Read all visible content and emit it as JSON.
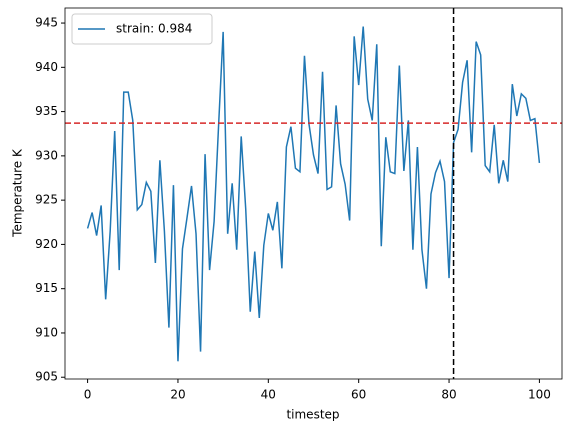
{
  "chart_data": {
    "type": "line",
    "xlabel": "timestep",
    "ylabel": "Temperature K",
    "x": [
      0,
      1,
      2,
      3,
      4,
      5,
      6,
      7,
      8,
      9,
      10,
      11,
      12,
      13,
      14,
      15,
      16,
      17,
      18,
      19,
      20,
      21,
      22,
      23,
      24,
      25,
      26,
      27,
      28,
      29,
      30,
      31,
      32,
      33,
      34,
      35,
      36,
      37,
      38,
      39,
      40,
      41,
      42,
      43,
      44,
      45,
      46,
      47,
      48,
      49,
      50,
      51,
      52,
      53,
      54,
      55,
      56,
      57,
      58,
      59,
      60,
      61,
      62,
      63,
      64,
      65,
      66,
      67,
      68,
      69,
      70,
      71,
      72,
      73,
      74,
      75,
      76,
      77,
      78,
      79,
      80,
      81,
      82,
      83,
      84,
      85,
      86,
      87,
      88,
      89,
      90,
      91,
      92,
      93,
      94,
      95,
      96,
      97,
      98,
      99,
      100
    ],
    "series": [
      {
        "name": "strain: 0.984",
        "color": "#1f77b4",
        "values": [
          921.8,
          923.6,
          921.0,
          924.4,
          913.8,
          921.5,
          932.8,
          917.1,
          937.2,
          937.2,
          934.0,
          923.9,
          924.5,
          927.0,
          926.0,
          917.9,
          929.5,
          921.5,
          910.6,
          926.7,
          906.8,
          919.5,
          923.0,
          926.6,
          921.2,
          907.9,
          930.2,
          917.1,
          922.6,
          933.5,
          944.0,
          921.2,
          926.9,
          919.4,
          932.2,
          924.0,
          912.4,
          919.2,
          911.7,
          919.9,
          923.5,
          921.6,
          924.8,
          917.3,
          931.0,
          933.3,
          928.6,
          928.2,
          941.3,
          933.6,
          930.1,
          928.0,
          939.5,
          926.2,
          926.5,
          935.7,
          929.1,
          926.8,
          922.7,
          943.5,
          938.0,
          944.6,
          936.4,
          934.0,
          942.6,
          919.8,
          932.1,
          928.2,
          928.0,
          940.2,
          928.3,
          934.0,
          919.4,
          931.0,
          919.4,
          915.0,
          925.7,
          928.1,
          929.4,
          927.1,
          916.2,
          931.5,
          933.0,
          938.3,
          940.8,
          930.4,
          942.9,
          941.4,
          928.9,
          928.2,
          933.5,
          926.9,
          929.5,
          927.1,
          938.1,
          934.5,
          937.0,
          936.5,
          934.0,
          934.2,
          929.2
        ]
      }
    ],
    "hline": {
      "value": 933.7,
      "color": "#d62728"
    },
    "vline": {
      "value": 81,
      "color": "#000000"
    },
    "xlim": [
      -5,
      105
    ],
    "xticks": [
      0,
      20,
      40,
      60,
      80,
      100
    ],
    "ylim": [
      904.8,
      946.7
    ],
    "yticks": [
      905,
      910,
      915,
      920,
      925,
      930,
      935,
      940,
      945
    ],
    "legend": "upper left"
  }
}
